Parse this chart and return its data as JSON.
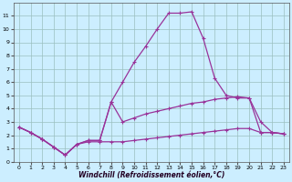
{
  "xlabel": "Windchill (Refroidissement éolien,°C)",
  "background_color": "#cceeff",
  "line_color": "#993399",
  "xlim": [
    -0.5,
    23.5
  ],
  "ylim": [
    0,
    12
  ],
  "xticks": [
    0,
    1,
    2,
    3,
    4,
    5,
    6,
    7,
    8,
    9,
    10,
    11,
    12,
    13,
    14,
    15,
    16,
    17,
    18,
    19,
    20,
    21,
    22,
    23
  ],
  "yticks": [
    0,
    1,
    2,
    3,
    4,
    5,
    6,
    7,
    8,
    9,
    10,
    11
  ],
  "line_upper_x": [
    0,
    1,
    2,
    3,
    4,
    5,
    6,
    7,
    8,
    9,
    10,
    11,
    12,
    13,
    14,
    15,
    16,
    17,
    18,
    19,
    20,
    21,
    22,
    23
  ],
  "line_upper_y": [
    2.6,
    2.2,
    1.7,
    1.1,
    0.5,
    1.3,
    1.6,
    1.6,
    4.5,
    6.0,
    7.5,
    8.7,
    10.0,
    11.2,
    11.2,
    11.3,
    9.3,
    6.3,
    5.0,
    4.8,
    4.8,
    3.0,
    2.2,
    2.1
  ],
  "line_mid_x": [
    0,
    1,
    2,
    3,
    4,
    5,
    6,
    7,
    8,
    9,
    10,
    11,
    12,
    13,
    14,
    15,
    16,
    17,
    18,
    19,
    20,
    21,
    22,
    23
  ],
  "line_mid_y": [
    2.6,
    2.2,
    1.7,
    1.1,
    0.5,
    1.3,
    1.6,
    1.6,
    4.5,
    3.0,
    3.3,
    3.6,
    3.8,
    4.0,
    4.2,
    4.4,
    4.5,
    4.7,
    4.8,
    4.9,
    4.8,
    2.2,
    2.2,
    2.1
  ],
  "line_low_x": [
    0,
    1,
    2,
    3,
    4,
    5,
    6,
    7,
    8,
    9,
    10,
    11,
    12,
    13,
    14,
    15,
    16,
    17,
    18,
    19,
    20,
    21,
    22,
    23
  ],
  "line_low_y": [
    2.6,
    2.2,
    1.7,
    1.1,
    0.5,
    1.3,
    1.5,
    1.5,
    1.5,
    1.5,
    1.6,
    1.7,
    1.8,
    1.9,
    2.0,
    2.1,
    2.2,
    2.3,
    2.4,
    2.5,
    2.5,
    2.2,
    2.2,
    2.1
  ]
}
